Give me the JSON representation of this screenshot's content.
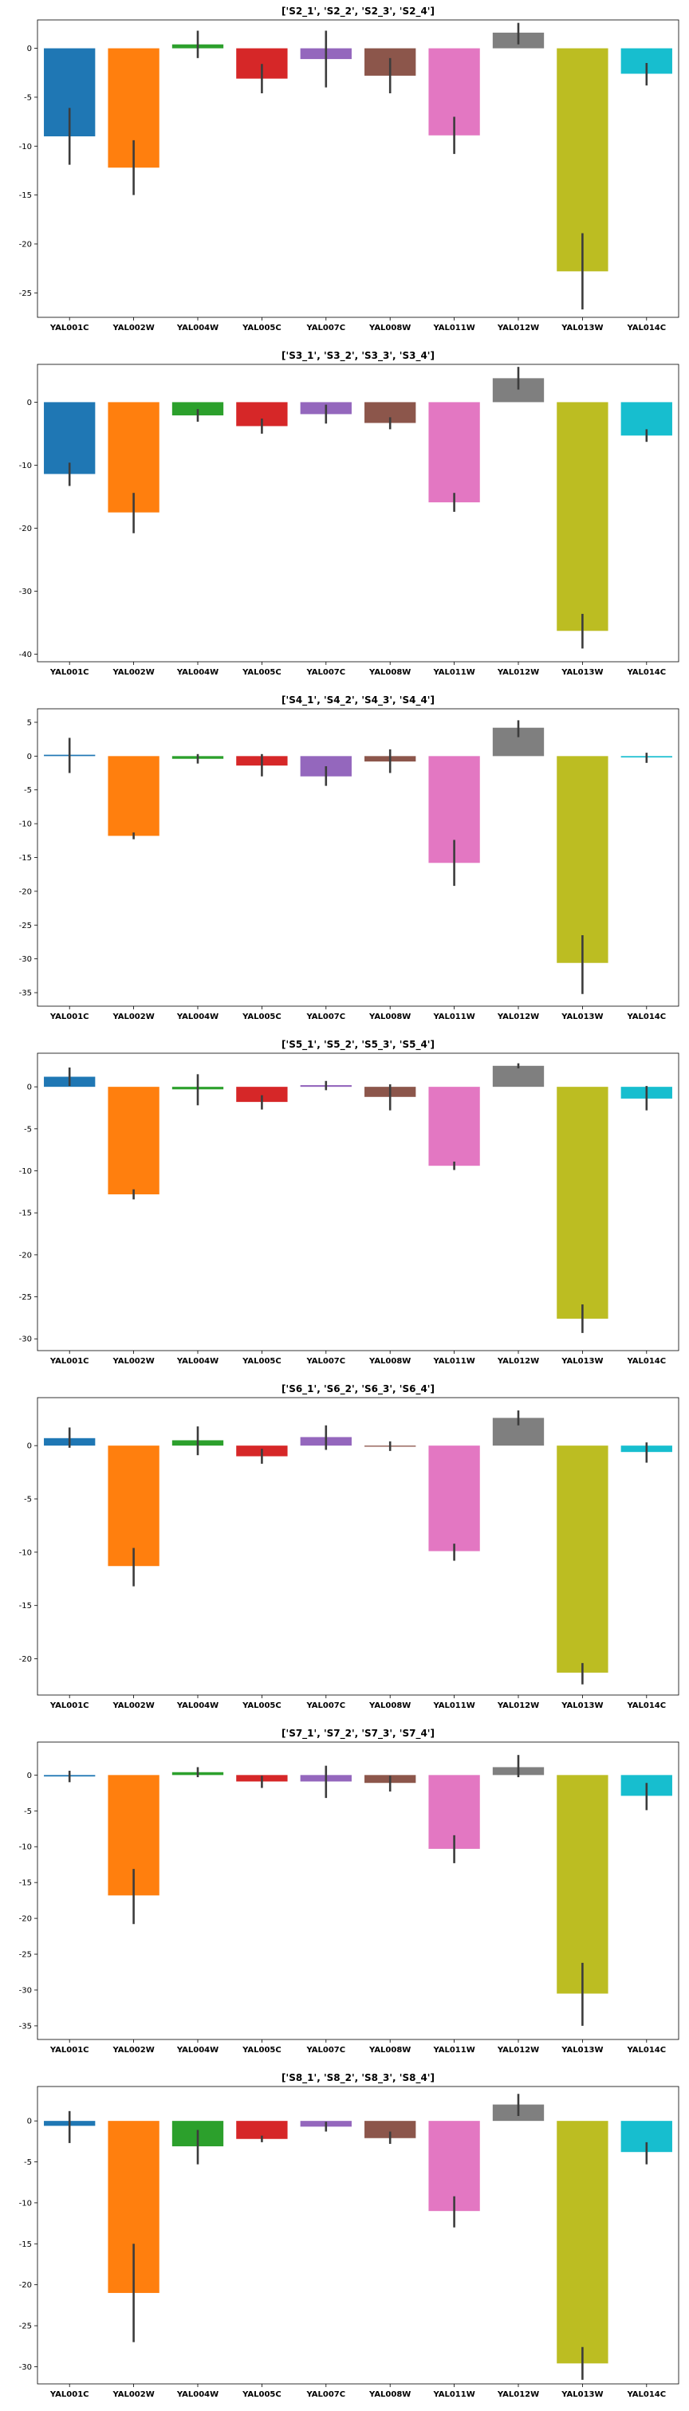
{
  "palette": [
    "#1f77b4",
    "#ff7f0e",
    "#2ca02c",
    "#d62728",
    "#9467bd",
    "#8c564b",
    "#e377c2",
    "#7f7f7f",
    "#bcbd22",
    "#17becf"
  ],
  "chart_data": [
    {
      "type": "bar",
      "title": "['S2_1', 'S2_2', 'S2_3', 'S2_4']",
      "categories": [
        "YAL001C",
        "YAL002W",
        "YAL004W",
        "YAL005C",
        "YAL007C",
        "YAL008W",
        "YAL011W",
        "YAL012W",
        "YAL013W",
        "YAL014C"
      ],
      "values": [
        -9.0,
        -12.2,
        0.4,
        -3.1,
        -1.1,
        -2.8,
        -8.9,
        1.6,
        -22.8,
        -2.6
      ],
      "err_low": [
        -11.9,
        -15.0,
        -1.0,
        -4.6,
        -4.0,
        -4.6,
        -10.8,
        0.4,
        -26.7,
        -3.8
      ],
      "err_high": [
        -6.1,
        -9.4,
        1.8,
        -1.6,
        1.8,
        -1.0,
        -7.0,
        2.6,
        -18.9,
        -1.5
      ],
      "yticks": [
        0,
        -5,
        -10,
        -15,
        -20,
        -25
      ],
      "ylim": [
        -27.5,
        2.9
      ]
    },
    {
      "type": "bar",
      "title": "['S3_1', 'S3_2', 'S3_3', 'S3_4']",
      "categories": [
        "YAL001C",
        "YAL002W",
        "YAL004W",
        "YAL005C",
        "YAL007C",
        "YAL008W",
        "YAL011W",
        "YAL012W",
        "YAL013W",
        "YAL014C"
      ],
      "values": [
        -11.4,
        -17.5,
        -2.1,
        -3.8,
        -1.9,
        -3.3,
        -15.9,
        3.8,
        -36.3,
        -5.3
      ],
      "err_low": [
        -13.3,
        -20.8,
        -3.1,
        -5.0,
        -3.4,
        -4.3,
        -17.4,
        2.0,
        -39.1,
        -6.3
      ],
      "err_high": [
        -9.6,
        -14.4,
        -1.1,
        -2.6,
        -0.4,
        -2.4,
        -14.4,
        5.6,
        -33.6,
        -4.3
      ],
      "yticks": [
        0,
        -10,
        -20,
        -30,
        -40
      ],
      "ylim": [
        -41.2,
        6.0
      ]
    },
    {
      "type": "bar",
      "title": "['S4_1', 'S4_2', 'S4_3', 'S4_4']",
      "categories": [
        "YAL001C",
        "YAL002W",
        "YAL004W",
        "YAL005C",
        "YAL007C",
        "YAL008W",
        "YAL011W",
        "YAL012W",
        "YAL013W",
        "YAL014C"
      ],
      "values": [
        0.2,
        -11.8,
        -0.4,
        -1.4,
        -3.0,
        -0.8,
        -15.8,
        4.2,
        -30.6,
        -0.2
      ],
      "err_low": [
        -2.5,
        -12.3,
        -1.1,
        -3.0,
        -4.4,
        -2.5,
        -19.2,
        2.8,
        -35.2,
        -1.0
      ],
      "err_high": [
        2.7,
        -11.3,
        0.3,
        0.3,
        -1.5,
        1.0,
        -12.4,
        5.3,
        -26.5,
        0.5
      ],
      "yticks": [
        5,
        0,
        -5,
        -10,
        -15,
        -20,
        -25,
        -30,
        -35
      ],
      "ylim": [
        -37.0,
        7.0
      ]
    },
    {
      "type": "bar",
      "title": "['S5_1', 'S5_2', 'S5_3', 'S5_4']",
      "categories": [
        "YAL001C",
        "YAL002W",
        "YAL004W",
        "YAL005C",
        "YAL007C",
        "YAL008W",
        "YAL011W",
        "YAL012W",
        "YAL013W",
        "YAL014C"
      ],
      "values": [
        1.2,
        -12.8,
        -0.3,
        -1.8,
        0.2,
        -1.2,
        -9.4,
        2.5,
        -27.6,
        -1.4
      ],
      "err_low": [
        0.1,
        -13.4,
        -2.2,
        -2.7,
        -0.4,
        -2.8,
        -9.9,
        2.2,
        -29.3,
        -2.8
      ],
      "err_high": [
        2.3,
        -12.2,
        1.5,
        -1.0,
        0.7,
        0.3,
        -8.9,
        2.8,
        -25.9,
        0.1
      ],
      "yticks": [
        0,
        -5,
        -10,
        -15,
        -20,
        -25,
        -30
      ],
      "ylim": [
        -31.4,
        4.0
      ]
    },
    {
      "type": "bar",
      "title": "['S6_1', 'S6_2', 'S6_3', 'S6_4']",
      "categories": [
        "YAL001C",
        "YAL002W",
        "YAL004W",
        "YAL005C",
        "YAL007C",
        "YAL008W",
        "YAL011W",
        "YAL012W",
        "YAL013W",
        "YAL014C"
      ],
      "values": [
        0.7,
        -11.3,
        0.5,
        -1.0,
        0.8,
        -0.1,
        -9.9,
        2.6,
        -21.3,
        -0.6
      ],
      "err_low": [
        -0.2,
        -13.2,
        -0.9,
        -1.7,
        -0.4,
        -0.5,
        -10.8,
        1.9,
        -22.4,
        -1.6
      ],
      "err_high": [
        1.7,
        -9.6,
        1.8,
        -0.3,
        1.9,
        0.4,
        -9.2,
        3.3,
        -20.4,
        0.3
      ],
      "yticks": [
        0,
        -5,
        -10,
        -15,
        -20
      ],
      "ylim": [
        -23.4,
        4.5
      ]
    },
    {
      "type": "bar",
      "title": "['S7_1', 'S7_2', 'S7_3', 'S7_4']",
      "categories": [
        "YAL001C",
        "YAL002W",
        "YAL004W",
        "YAL005C",
        "YAL007C",
        "YAL008W",
        "YAL011W",
        "YAL012W",
        "YAL013W",
        "YAL014C"
      ],
      "values": [
        -0.2,
        -16.8,
        0.4,
        -0.9,
        -0.9,
        -1.1,
        -10.3,
        1.1,
        -30.5,
        -2.9
      ],
      "err_low": [
        -1.0,
        -20.8,
        -0.3,
        -1.8,
        -3.2,
        -2.3,
        -12.3,
        -0.3,
        -35.0,
        -4.9
      ],
      "err_high": [
        0.6,
        -13.1,
        1.1,
        -0.1,
        1.3,
        -0.1,
        -8.4,
        2.8,
        -26.2,
        -1.1
      ],
      "yticks": [
        0,
        -5,
        -10,
        -15,
        -20,
        -25,
        -30,
        -35
      ],
      "ylim": [
        -36.9,
        4.6
      ]
    },
    {
      "type": "bar",
      "title": "['S8_1', 'S8_2', 'S8_3', 'S8_4']",
      "categories": [
        "YAL001C",
        "YAL002W",
        "YAL004W",
        "YAL005C",
        "YAL007C",
        "YAL008W",
        "YAL011W",
        "YAL012W",
        "YAL013W",
        "YAL014C"
      ],
      "values": [
        -0.6,
        -21.0,
        -3.1,
        -2.2,
        -0.7,
        -2.1,
        -11.0,
        2.0,
        -29.6,
        -3.8
      ],
      "err_low": [
        -2.7,
        -27.0,
        -5.3,
        -2.6,
        -1.3,
        -2.8,
        -13.0,
        0.6,
        -31.6,
        -5.3
      ],
      "err_high": [
        1.2,
        -15.0,
        -1.1,
        -1.8,
        -0.1,
        -1.3,
        -9.2,
        3.3,
        -27.6,
        -2.6
      ],
      "yticks": [
        0,
        -5,
        -10,
        -15,
        -20,
        -25,
        -30
      ],
      "ylim": [
        -32.1,
        4.2
      ]
    }
  ]
}
